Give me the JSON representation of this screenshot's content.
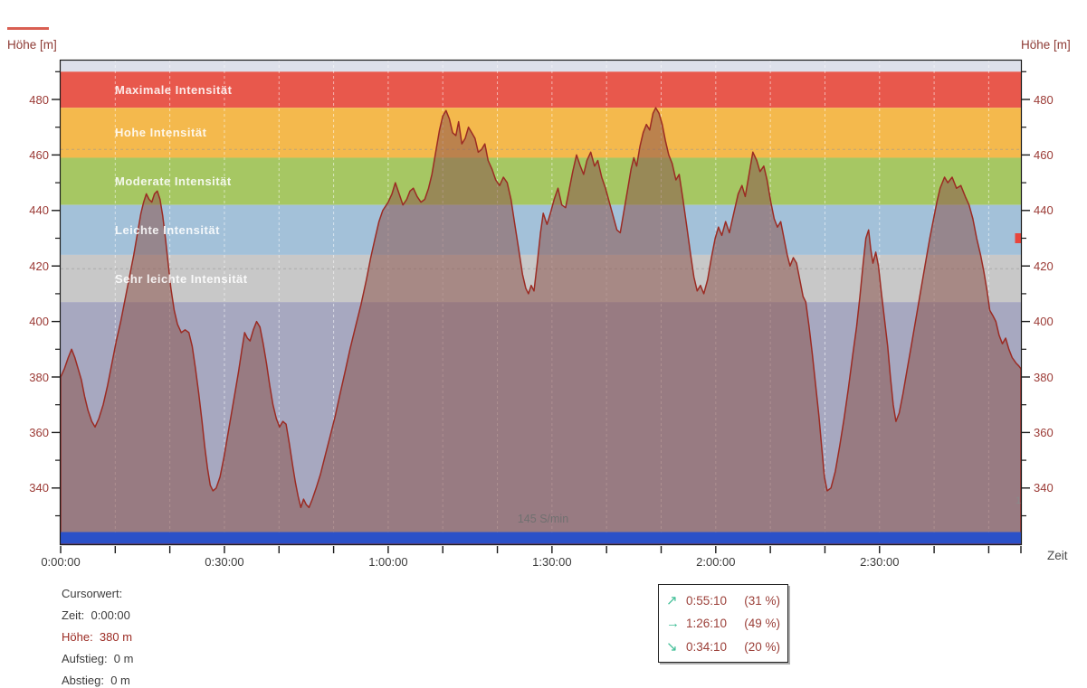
{
  "window": {
    "kind": "elevation-profile-chart"
  },
  "colors": {
    "curve": "#9b2b23",
    "curve_fill": "rgba(140,85,78,0.55)",
    "blue_bar": "#2b51c8",
    "marker_red": "#e8453c",
    "axis_line": "#1a1a1a",
    "grid_vertical": "rgba(255,255,255,0.55)",
    "grid_horizontal": "rgba(150,150,150,0.55)",
    "maroon_text": "#9b3a35",
    "legend_arrow": "#3fbe96"
  },
  "titles": {
    "y_left": "Höhe [m]",
    "y_right": "Höhe [m]",
    "x": "Zeit"
  },
  "chart_data": {
    "type": "area",
    "title": "",
    "xlabel": "Zeit",
    "ylabel": "Höhe [m]",
    "x_range_min": [
      0,
      175.9
    ],
    "y_range_m": [
      319.4,
      494.3
    ],
    "grid": "dashed",
    "x_minor_tick_step_min": 10,
    "x_major_ticks": [
      {
        "t": 0,
        "label": "0:00:00"
      },
      {
        "t": 30,
        "label": "0:30:00"
      },
      {
        "t": 60,
        "label": "1:00:00"
      },
      {
        "t": 90,
        "label": "1:30:00"
      },
      {
        "t": 120,
        "label": "2:00:00"
      },
      {
        "t": 150,
        "label": "2:30:00"
      }
    ],
    "y_major_ticks": [
      {
        "v": 480,
        "label": "480"
      },
      {
        "v": 460,
        "label": "460"
      },
      {
        "v": 440,
        "label": "440"
      },
      {
        "v": 420,
        "label": "420"
      },
      {
        "v": 400,
        "label": "400"
      },
      {
        "v": 380,
        "label": "380"
      },
      {
        "v": 360,
        "label": "360"
      },
      {
        "v": 340,
        "label": "340"
      }
    ],
    "y_minor_ticks": [
      330,
      350,
      370,
      390,
      410,
      430,
      450,
      470,
      490
    ],
    "h_gridlines_m": [
      462,
      419
    ],
    "zones": [
      {
        "label": "",
        "from": 490,
        "to": 494.3,
        "color": "#dde0ea"
      },
      {
        "label": "Maximale Intensität",
        "from": 477,
        "to": 490,
        "color": "#e8584c"
      },
      {
        "label": "Hohe Intensität",
        "from": 459,
        "to": 477,
        "color": "#f4b94d"
      },
      {
        "label": "Moderate Intensität",
        "from": 442,
        "to": 459,
        "color": "#a6c763"
      },
      {
        "label": "Leichte Intensität",
        "from": 424,
        "to": 442,
        "color": "#a3c1d9"
      },
      {
        "label": "Sehr leichte Intensität",
        "from": 407,
        "to": 424,
        "color": "#c8c8c8"
      },
      {
        "label": "",
        "from": 319.4,
        "to": 407,
        "color": "#a7a8c0"
      }
    ],
    "hr_avg_label": "145 S/min",
    "clipped_right_label": "1",
    "series": {
      "name": "Höhe",
      "points": [
        [
          0,
          380
        ],
        [
          0.7,
          383
        ],
        [
          1.4,
          387
        ],
        [
          2,
          390
        ],
        [
          2.6,
          387
        ],
        [
          3.2,
          383
        ],
        [
          3.8,
          379
        ],
        [
          4.4,
          373
        ],
        [
          5,
          368
        ],
        [
          5.7,
          364
        ],
        [
          6.3,
          362
        ],
        [
          7,
          365
        ],
        [
          7.8,
          370
        ],
        [
          8.6,
          377
        ],
        [
          9.4,
          385
        ],
        [
          10.2,
          393
        ],
        [
          11,
          400
        ],
        [
          11.8,
          408
        ],
        [
          12.6,
          416
        ],
        [
          13.4,
          424
        ],
        [
          14.1,
          432
        ],
        [
          14.7,
          439
        ],
        [
          15.2,
          443
        ],
        [
          15.7,
          446
        ],
        [
          16.2,
          444
        ],
        [
          16.7,
          443
        ],
        [
          17.2,
          446
        ],
        [
          17.7,
          447
        ],
        [
          18.2,
          444
        ],
        [
          18.7,
          438
        ],
        [
          19.2,
          430
        ],
        [
          19.7,
          421
        ],
        [
          20.2,
          412
        ],
        [
          20.8,
          404
        ],
        [
          21.4,
          399
        ],
        [
          22.1,
          396
        ],
        [
          22.8,
          397
        ],
        [
          23.5,
          396
        ],
        [
          24.1,
          391
        ],
        [
          24.7,
          383
        ],
        [
          25.3,
          374
        ],
        [
          25.9,
          364
        ],
        [
          26.4,
          355
        ],
        [
          26.9,
          347
        ],
        [
          27.4,
          341
        ],
        [
          27.9,
          339
        ],
        [
          28.5,
          340
        ],
        [
          29.2,
          344
        ],
        [
          29.9,
          351
        ],
        [
          30.6,
          359
        ],
        [
          31.3,
          367
        ],
        [
          32,
          375
        ],
        [
          32.6,
          382
        ],
        [
          33.2,
          390
        ],
        [
          33.7,
          396
        ],
        [
          34.2,
          394
        ],
        [
          34.7,
          393
        ],
        [
          35.3,
          397
        ],
        [
          35.9,
          400
        ],
        [
          36.5,
          398
        ],
        [
          37.1,
          392
        ],
        [
          37.7,
          385
        ],
        [
          38.3,
          377
        ],
        [
          38.9,
          370
        ],
        [
          39.5,
          365
        ],
        [
          40.1,
          362
        ],
        [
          40.7,
          364
        ],
        [
          41.3,
          363
        ],
        [
          41.9,
          356
        ],
        [
          42.5,
          348
        ],
        [
          43,
          342
        ],
        [
          43.5,
          337
        ],
        [
          44,
          333
        ],
        [
          44.5,
          336
        ],
        [
          45,
          334
        ],
        [
          45.5,
          333
        ],
        [
          46.1,
          336
        ],
        [
          46.8,
          340
        ],
        [
          47.6,
          345
        ],
        [
          48.5,
          352
        ],
        [
          49.4,
          359
        ],
        [
          50.3,
          366
        ],
        [
          51.2,
          374
        ],
        [
          52.1,
          382
        ],
        [
          53,
          390
        ],
        [
          54,
          398
        ],
        [
          55,
          406
        ],
        [
          56,
          415
        ],
        [
          56.8,
          423
        ],
        [
          57.6,
          430
        ],
        [
          58.3,
          436
        ],
        [
          59,
          440
        ],
        [
          60,
          443
        ],
        [
          60.7,
          446
        ],
        [
          61.3,
          450
        ],
        [
          62,
          446
        ],
        [
          62.7,
          442
        ],
        [
          63.4,
          444
        ],
        [
          64,
          447
        ],
        [
          64.6,
          448
        ],
        [
          65.3,
          445
        ],
        [
          66,
          443
        ],
        [
          66.7,
          444
        ],
        [
          67.4,
          448
        ],
        [
          68,
          453
        ],
        [
          68.7,
          461
        ],
        [
          69.4,
          469
        ],
        [
          70,
          474
        ],
        [
          70.6,
          476
        ],
        [
          71.2,
          473
        ],
        [
          71.8,
          468
        ],
        [
          72.4,
          467
        ],
        [
          72.9,
          472
        ],
        [
          73.5,
          464
        ],
        [
          74.1,
          466
        ],
        [
          74.7,
          470
        ],
        [
          75.3,
          468
        ],
        [
          75.9,
          466
        ],
        [
          76.5,
          461
        ],
        [
          77.1,
          462
        ],
        [
          77.7,
          464
        ],
        [
          78.3,
          458
        ],
        [
          79,
          455
        ],
        [
          79.7,
          451
        ],
        [
          80.4,
          449
        ],
        [
          81.1,
          452
        ],
        [
          81.8,
          450
        ],
        [
          82.5,
          444
        ],
        [
          83.2,
          435
        ],
        [
          83.9,
          426
        ],
        [
          84.6,
          417
        ],
        [
          85.2,
          412
        ],
        [
          85.7,
          410
        ],
        [
          86.2,
          413
        ],
        [
          86.7,
          411
        ],
        [
          87.3,
          421
        ],
        [
          87.9,
          432
        ],
        [
          88.4,
          439
        ],
        [
          89.1,
          435
        ],
        [
          89.7,
          439
        ],
        [
          90.4,
          444
        ],
        [
          91.1,
          448
        ],
        [
          91.8,
          442
        ],
        [
          92.5,
          441
        ],
        [
          93.1,
          447
        ],
        [
          93.8,
          454
        ],
        [
          94.5,
          460
        ],
        [
          95.2,
          456
        ],
        [
          95.8,
          453
        ],
        [
          96.4,
          458
        ],
        [
          97.1,
          461
        ],
        [
          97.8,
          456
        ],
        [
          98.4,
          458
        ],
        [
          99.1,
          452
        ],
        [
          99.8,
          448
        ],
        [
          100.5,
          443
        ],
        [
          101.2,
          438
        ],
        [
          101.9,
          433
        ],
        [
          102.5,
          432
        ],
        [
          103.2,
          440
        ],
        [
          103.9,
          448
        ],
        [
          104.5,
          455
        ],
        [
          105,
          459
        ],
        [
          105.5,
          456
        ],
        [
          106.1,
          463
        ],
        [
          106.7,
          468
        ],
        [
          107.3,
          471
        ],
        [
          107.9,
          469
        ],
        [
          108.5,
          475
        ],
        [
          109,
          477
        ],
        [
          109.6,
          475
        ],
        [
          110.2,
          471
        ],
        [
          110.8,
          465
        ],
        [
          111.4,
          460
        ],
        [
          112,
          457
        ],
        [
          112.7,
          451
        ],
        [
          113.3,
          453
        ],
        [
          114,
          444
        ],
        [
          114.7,
          434
        ],
        [
          115.4,
          424
        ],
        [
          116,
          416
        ],
        [
          116.6,
          411
        ],
        [
          117.2,
          413
        ],
        [
          117.8,
          410
        ],
        [
          118.5,
          415
        ],
        [
          119.2,
          423
        ],
        [
          119.9,
          430
        ],
        [
          120.5,
          434
        ],
        [
          121.1,
          431
        ],
        [
          121.8,
          436
        ],
        [
          122.5,
          432
        ],
        [
          123.3,
          439
        ],
        [
          124.1,
          446
        ],
        [
          124.8,
          449
        ],
        [
          125.4,
          445
        ],
        [
          126.1,
          453
        ],
        [
          126.8,
          461
        ],
        [
          127.5,
          458
        ],
        [
          128.1,
          454
        ],
        [
          128.8,
          456
        ],
        [
          129.4,
          451
        ],
        [
          130.1,
          443
        ],
        [
          130.7,
          437
        ],
        [
          131.3,
          434
        ],
        [
          131.9,
          436
        ],
        [
          132.5,
          430
        ],
        [
          133.1,
          424
        ],
        [
          133.6,
          420
        ],
        [
          134.2,
          423
        ],
        [
          134.8,
          421
        ],
        [
          135.4,
          415
        ],
        [
          136,
          409
        ],
        [
          136.5,
          407
        ],
        [
          137.1,
          398
        ],
        [
          137.7,
          388
        ],
        [
          138.3,
          377
        ],
        [
          138.9,
          366
        ],
        [
          139.4,
          355
        ],
        [
          139.9,
          344
        ],
        [
          140.4,
          339
        ],
        [
          141.1,
          340
        ],
        [
          141.9,
          346
        ],
        [
          142.7,
          355
        ],
        [
          143.5,
          365
        ],
        [
          144.3,
          376
        ],
        [
          145.1,
          388
        ],
        [
          145.8,
          398
        ],
        [
          146.4,
          409
        ],
        [
          147,
          421
        ],
        [
          147.5,
          430
        ],
        [
          148,
          433
        ],
        [
          148.4,
          426
        ],
        [
          148.8,
          421
        ],
        [
          149.3,
          425
        ],
        [
          149.8,
          420
        ],
        [
          150.3,
          411
        ],
        [
          150.9,
          401
        ],
        [
          151.5,
          391
        ],
        [
          152,
          380
        ],
        [
          152.5,
          370
        ],
        [
          153,
          364
        ],
        [
          153.6,
          367
        ],
        [
          154.3,
          374
        ],
        [
          155,
          382
        ],
        [
          155.7,
          390
        ],
        [
          156.4,
          398
        ],
        [
          157.1,
          406
        ],
        [
          157.8,
          414
        ],
        [
          158.5,
          422
        ],
        [
          159.2,
          430
        ],
        [
          159.9,
          437
        ],
        [
          160.5,
          443
        ],
        [
          161.1,
          448
        ],
        [
          161.9,
          452
        ],
        [
          162.5,
          450
        ],
        [
          163.3,
          452
        ],
        [
          164.1,
          448
        ],
        [
          164.9,
          449
        ],
        [
          165.7,
          445
        ],
        [
          166.4,
          442
        ],
        [
          167.1,
          437
        ],
        [
          167.8,
          430
        ],
        [
          168.5,
          424
        ],
        [
          169.1,
          418
        ],
        [
          169.7,
          411
        ],
        [
          170.2,
          404
        ],
        [
          170.8,
          402
        ],
        [
          171.3,
          400
        ],
        [
          171.9,
          395
        ],
        [
          172.5,
          392
        ],
        [
          173.1,
          394
        ],
        [
          173.7,
          390
        ],
        [
          174.3,
          387
        ],
        [
          175,
          385
        ],
        [
          175.5,
          384
        ],
        [
          175.9,
          383
        ]
      ]
    }
  },
  "cursor_panel": {
    "rows": [
      {
        "label": "Cursorwert:",
        "value": "",
        "accent": false
      },
      {
        "label": "Zeit:",
        "value": "0:00:00",
        "accent": false
      },
      {
        "label": "Höhe:",
        "value": "380 m",
        "accent": true
      },
      {
        "label": "Aufstieg:",
        "value": "0 m",
        "accent": false
      },
      {
        "label": "Abstieg:",
        "value": "0 m",
        "accent": false
      }
    ]
  },
  "summary_legend": {
    "rows": [
      {
        "icon": "arrow-up-right",
        "glyph": "↗",
        "time": "0:55:10",
        "share": "(31 %)"
      },
      {
        "icon": "arrow-right",
        "glyph": "→",
        "time": "1:26:10",
        "share": "(49 %)"
      },
      {
        "icon": "arrow-down-right",
        "glyph": "↘",
        "time": "0:34:10",
        "share": "(20 %)"
      }
    ]
  }
}
